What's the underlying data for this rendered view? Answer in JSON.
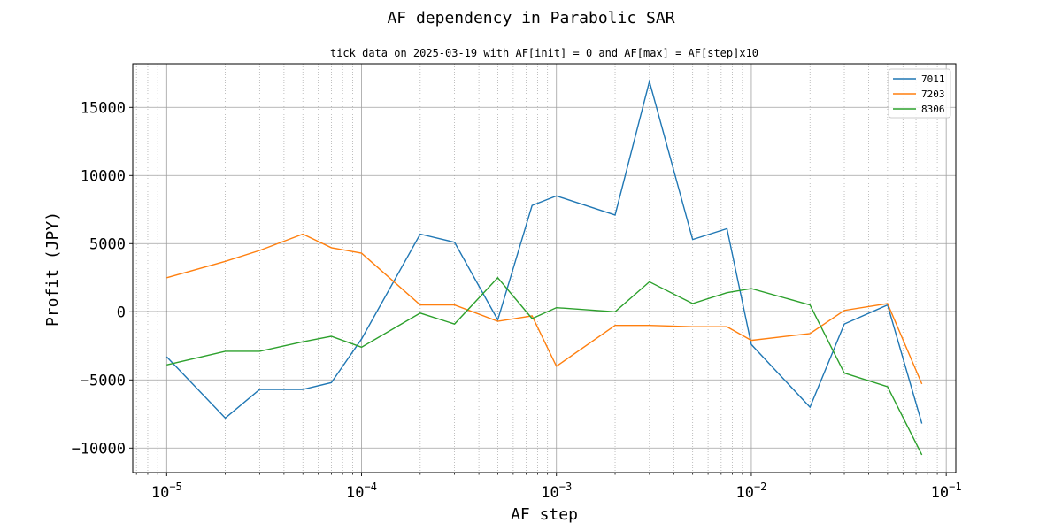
{
  "chart_data": {
    "type": "line",
    "title": "AF dependency in Parabolic SAR",
    "subtitle": "tick data on 2025-03-19 with AF[init] = 0 and AF[max] = AF[step]x10",
    "xlabel": "AF step",
    "ylabel": "Profit (JPY)",
    "xscale": "log",
    "xlim": [
      6.7e-06,
      0.112
    ],
    "ylim": [
      -11800,
      18200
    ],
    "grid": true,
    "legend_position": "top-right",
    "x": [
      1e-05,
      2e-05,
      3e-05,
      5e-05,
      7e-05,
      0.0001,
      0.0002,
      0.0003,
      0.0005,
      0.00075,
      0.001,
      0.002,
      0.003,
      0.005,
      0.0075,
      0.01,
      0.02,
      0.03,
      0.05,
      0.075
    ],
    "series": [
      {
        "name": "7011",
        "color": "#1f77b4",
        "values": [
          -3300,
          -7800,
          -5700,
          -5700,
          -5200,
          -2000,
          5700,
          5100,
          -600,
          7800,
          8500,
          7100,
          16900,
          5300,
          6100,
          -2400,
          -7000,
          -900,
          500,
          -8200
        ]
      },
      {
        "name": "7203",
        "color": "#ff7f0e",
        "values": [
          2500,
          3700,
          4500,
          5700,
          4700,
          4300,
          500,
          500,
          -700,
          -300,
          -4000,
          -1000,
          -1000,
          -1100,
          -1100,
          -2100,
          -1600,
          100,
          600,
          -5300
        ]
      },
      {
        "name": "8306",
        "color": "#2ca02c",
        "values": [
          -3900,
          -2900,
          -2900,
          -2200,
          -1800,
          -2600,
          -100,
          -900,
          2500,
          -500,
          300,
          0,
          2200,
          600,
          1400,
          1700,
          500,
          -4500,
          -5500,
          -10500
        ]
      }
    ],
    "y_ticks": [
      {
        "value": 15000,
        "label": "15000"
      },
      {
        "value": 10000,
        "label": "10000"
      },
      {
        "value": 5000,
        "label": "5000"
      },
      {
        "value": 0,
        "label": "0"
      },
      {
        "value": -5000,
        "label": "−5000"
      },
      {
        "value": -10000,
        "label": "−10000"
      }
    ],
    "x_ticks": [
      {
        "value": 1e-05,
        "base": "10",
        "exp": "−5"
      },
      {
        "value": 0.0001,
        "base": "10",
        "exp": "−4"
      },
      {
        "value": 0.001,
        "base": "10",
        "exp": "−3"
      },
      {
        "value": 0.01,
        "base": "10",
        "exp": "−2"
      },
      {
        "value": 0.1,
        "base": "10",
        "exp": "−1"
      }
    ],
    "zero_line": 0
  }
}
